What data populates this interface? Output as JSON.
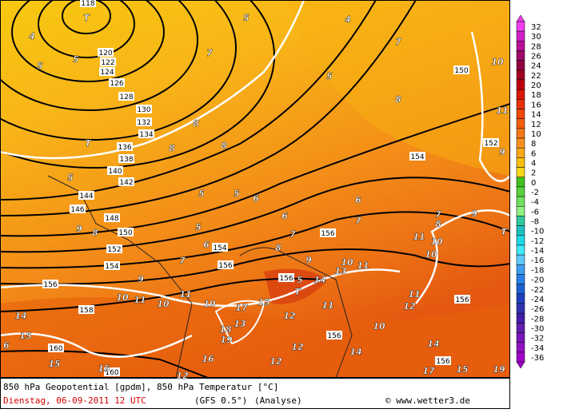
{
  "footer": {
    "line1": "850 hPa Geopotential [gpdm], 850 hPa Temperatur [°C]",
    "date": "Dienstag, 06-09-2011   12 UTC",
    "model": "(GFS 0.5°)",
    "run": "(Analyse)",
    "credit": "© www.wetter3.de"
  },
  "legend": {
    "values": [
      32,
      30,
      28,
      26,
      24,
      22,
      20,
      18,
      16,
      14,
      12,
      10,
      8,
      6,
      4,
      2,
      0,
      -2,
      -4,
      -6,
      -8,
      -10,
      -12,
      -14,
      -16,
      -18,
      -20,
      -22,
      -24,
      -26,
      -28,
      -30,
      -32,
      -34,
      -36
    ],
    "colors": [
      "#f040f0",
      "#d020c8",
      "#b81098",
      "#a00868",
      "#900040",
      "#a00020",
      "#c00010",
      "#d81808",
      "#e83008",
      "#f04808",
      "#f46010",
      "#f47818",
      "#f89020",
      "#f8a818",
      "#f8c010",
      "#f8d818",
      "#40c020",
      "#58d040",
      "#70e060",
      "#90f080",
      "#30c8a0",
      "#20c0c0",
      "#20d8e8",
      "#40e8f8",
      "#60c8f8",
      "#40a0f0",
      "#2880e8",
      "#1860d0",
      "#2040c0",
      "#3030b0",
      "#4020a8",
      "#6020b0",
      "#7818b8",
      "#9010c0",
      "#a000c8"
    ]
  },
  "height_labels": [
    "118",
    "120",
    "122",
    "124",
    "126",
    "128",
    "130",
    "132",
    "134",
    "136",
    "138",
    "140",
    "142",
    "144",
    "146",
    "148",
    "150",
    "152",
    "154",
    "154",
    "156",
    "156",
    "158",
    "160",
    "160",
    "156",
    "154",
    "152",
    "150",
    "156",
    "156",
    "156",
    "156"
  ],
  "temperature_labels": [
    "4",
    "4",
    "5",
    "5",
    "5",
    "5",
    "5",
    "5",
    "5",
    "5",
    "5",
    "7",
    "7",
    "8",
    "8",
    "8",
    "8",
    "6",
    "6",
    "6",
    "7",
    "7",
    "8",
    "6",
    "7",
    "9",
    "10",
    "10",
    "10",
    "11",
    "11",
    "15",
    "13",
    "17",
    "18",
    "19",
    "12",
    "14",
    "15",
    "15",
    "15",
    "16",
    "12",
    "12",
    "11",
    "12",
    "14",
    "10",
    "11",
    "12",
    "14",
    "15",
    "19",
    "17",
    "10",
    "11",
    "10",
    "10",
    "11",
    "9",
    "T",
    "9",
    "8",
    "7",
    "10",
    "11",
    "13",
    "9",
    "14",
    "T",
    "T",
    "T",
    "9",
    "8",
    "6"
  ]
}
